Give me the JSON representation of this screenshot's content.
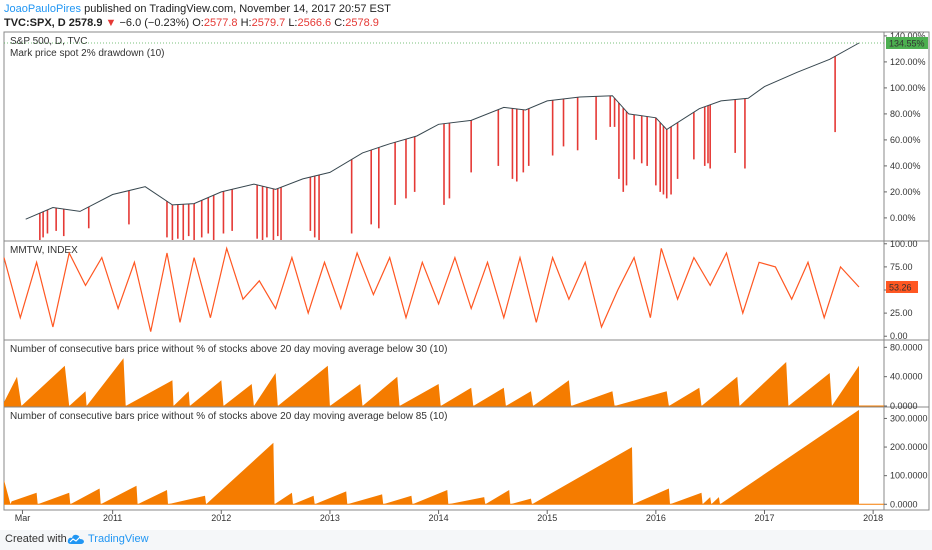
{
  "header": {
    "author": "JoaoPauloPires",
    "published": " published on TradingView.com, November 14, 2017 20:57 EST",
    "symbol": "TVC:SPX, D",
    "last": "2578.9",
    "change": "−6.0 (−0.23%)",
    "o_label": "O:",
    "o_value": "2577.8",
    "h_label": "H:",
    "h_value": "2579.7",
    "l_label": "L:",
    "l_value": "2566.6",
    "c_label": "C:",
    "c_value": "2578.9"
  },
  "footer": {
    "created_with": "Created with",
    "brand": "TradingView",
    "logo_icon": "tradingview-cloud-icon"
  },
  "colors": {
    "accent": "#2196f3",
    "down": "#e53935",
    "orange": "#ff5722",
    "histogram": "#f57c00",
    "bar_red": "#e53935",
    "badge_green": "#4caf50"
  },
  "chart_data": [
    {
      "type": "line",
      "title": "S&P 500, D, TVC",
      "subtitle": "Mark price spot 2% drawdown (10)",
      "last_value_label": "134.55%",
      "y_ticks": [
        "140.00%",
        "120.00%",
        "100.00%",
        "80.00%",
        "60.00%",
        "40.00%",
        "20.00%",
        "0.00%"
      ],
      "y_tick_values": [
        140,
        120,
        100,
        80,
        60,
        40,
        20,
        0
      ],
      "ylim": [
        -17,
        143
      ],
      "x": [
        2010.2,
        2010.45,
        2010.7,
        2011.0,
        2011.3,
        2011.55,
        2011.75,
        2012.0,
        2012.3,
        2012.5,
        2012.75,
        2013.0,
        2013.3,
        2013.55,
        2013.8,
        2014.0,
        2014.3,
        2014.6,
        2014.8,
        2015.0,
        2015.3,
        2015.6,
        2015.75,
        2016.0,
        2016.1,
        2016.4,
        2016.6,
        2016.85,
        2017.0,
        2017.3,
        2017.6,
        2017.87
      ],
      "values": [
        -1,
        8,
        5,
        18,
        24,
        10,
        11,
        20,
        26,
        22,
        30,
        35,
        50,
        57,
        63,
        72,
        75,
        85,
        83,
        90,
        93,
        94,
        80,
        77,
        68,
        84,
        90,
        92,
        101,
        112,
        122,
        134.55
      ],
      "drawdown_bars": [
        {
          "x": 2010.33,
          "low": -17
        },
        {
          "x": 2010.36,
          "low": -15
        },
        {
          "x": 2010.4,
          "low": -12
        },
        {
          "x": 2010.48,
          "low": -10
        },
        {
          "x": 2010.55,
          "low": -14
        },
        {
          "x": 2010.78,
          "low": -8
        },
        {
          "x": 2011.15,
          "low": -5
        },
        {
          "x": 2011.5,
          "low": -15
        },
        {
          "x": 2011.55,
          "low": -17
        },
        {
          "x": 2011.6,
          "low": -16
        },
        {
          "x": 2011.65,
          "low": -17
        },
        {
          "x": 2011.7,
          "low": -14
        },
        {
          "x": 2011.75,
          "low": -17
        },
        {
          "x": 2011.82,
          "low": -15
        },
        {
          "x": 2011.88,
          "low": -12
        },
        {
          "x": 2011.93,
          "low": -17
        },
        {
          "x": 2012.02,
          "low": -12
        },
        {
          "x": 2012.1,
          "low": -10
        },
        {
          "x": 2012.33,
          "low": -16
        },
        {
          "x": 2012.38,
          "low": -17
        },
        {
          "x": 2012.42,
          "low": -15
        },
        {
          "x": 2012.48,
          "low": -17
        },
        {
          "x": 2012.52,
          "low": -14
        },
        {
          "x": 2012.55,
          "low": -17
        },
        {
          "x": 2012.82,
          "low": -10
        },
        {
          "x": 2012.86,
          "low": -15
        },
        {
          "x": 2012.9,
          "low": -17
        },
        {
          "x": 2013.2,
          "low": -12
        },
        {
          "x": 2013.38,
          "low": -5
        },
        {
          "x": 2013.45,
          "low": -8
        },
        {
          "x": 2013.6,
          "low": 10
        },
        {
          "x": 2013.7,
          "low": 15
        },
        {
          "x": 2013.78,
          "low": 20
        },
        {
          "x": 2014.05,
          "low": 10
        },
        {
          "x": 2014.1,
          "low": 15
        },
        {
          "x": 2014.3,
          "low": 35
        },
        {
          "x": 2014.55,
          "low": 40
        },
        {
          "x": 2014.68,
          "low": 30
        },
        {
          "x": 2014.72,
          "low": 28
        },
        {
          "x": 2014.78,
          "low": 35
        },
        {
          "x": 2014.83,
          "low": 40
        },
        {
          "x": 2015.05,
          "low": 48
        },
        {
          "x": 2015.15,
          "low": 55
        },
        {
          "x": 2015.28,
          "low": 52
        },
        {
          "x": 2015.45,
          "low": 60
        },
        {
          "x": 2015.58,
          "low": 70
        },
        {
          "x": 2015.62,
          "low": 70
        },
        {
          "x": 2015.66,
          "low": 30
        },
        {
          "x": 2015.7,
          "low": 20
        },
        {
          "x": 2015.73,
          "low": 25
        },
        {
          "x": 2015.8,
          "low": 45
        },
        {
          "x": 2015.87,
          "low": 42
        },
        {
          "x": 2015.92,
          "low": 40
        },
        {
          "x": 2016.0,
          "low": 25
        },
        {
          "x": 2016.04,
          "low": 20
        },
        {
          "x": 2016.07,
          "low": 18
        },
        {
          "x": 2016.1,
          "low": 15
        },
        {
          "x": 2016.14,
          "low": 18
        },
        {
          "x": 2016.2,
          "low": 30
        },
        {
          "x": 2016.35,
          "low": 45
        },
        {
          "x": 2016.45,
          "low": 40
        },
        {
          "x": 2016.48,
          "low": 42
        },
        {
          "x": 2016.5,
          "low": 38
        },
        {
          "x": 2016.73,
          "low": 50
        },
        {
          "x": 2016.82,
          "low": 38
        },
        {
          "x": 2017.65,
          "low": 66
        }
      ]
    },
    {
      "type": "line",
      "title": "MMTW, INDEX",
      "last_value_label": "53.26",
      "y_ticks": [
        "100.00",
        "75.00",
        "50.00",
        "25.00",
        "0.00"
      ],
      "y_tick_values": [
        100,
        75,
        50,
        25,
        0
      ],
      "ylim": [
        -3,
        103
      ],
      "x": [
        2010.0,
        2010.15,
        2010.3,
        2010.45,
        2010.6,
        2010.75,
        2010.9,
        2011.05,
        2011.2,
        2011.35,
        2011.5,
        2011.62,
        2011.75,
        2011.9,
        2012.05,
        2012.2,
        2012.35,
        2012.5,
        2012.65,
        2012.8,
        2012.95,
        2013.1,
        2013.25,
        2013.4,
        2013.55,
        2013.7,
        2013.85,
        2014.0,
        2014.15,
        2014.3,
        2014.45,
        2014.6,
        2014.75,
        2014.9,
        2015.05,
        2015.2,
        2015.35,
        2015.5,
        2015.65,
        2015.8,
        2015.95,
        2016.05,
        2016.2,
        2016.35,
        2016.5,
        2016.65,
        2016.8,
        2016.95,
        2017.1,
        2017.25,
        2017.4,
        2017.55,
        2017.7,
        2017.87
      ],
      "values": [
        85,
        20,
        80,
        10,
        90,
        55,
        85,
        30,
        80,
        5,
        90,
        15,
        85,
        20,
        95,
        40,
        60,
        30,
        85,
        25,
        80,
        30,
        90,
        45,
        85,
        20,
        80,
        35,
        85,
        30,
        80,
        20,
        85,
        15,
        85,
        40,
        80,
        10,
        50,
        85,
        20,
        95,
        40,
        85,
        55,
        90,
        25,
        80,
        75,
        40,
        80,
        20,
        75,
        53.26
      ]
    },
    {
      "type": "area",
      "title": "Number of consecutive bars price without % of stocks above 20 day moving average below 30 (10)",
      "y_ticks": [
        "80.0000",
        "40.0000",
        "0.0000"
      ],
      "y_tick_values": [
        80,
        40,
        0
      ],
      "ylim": [
        0,
        90
      ],
      "x": [
        2010.0,
        2010.12,
        2010.16,
        2010.56,
        2010.6,
        2010.75,
        2010.76,
        2011.1,
        2011.12,
        2011.55,
        2011.56,
        2011.7,
        2011.71,
        2012.0,
        2012.02,
        2012.28,
        2012.3,
        2012.5,
        2012.52,
        2012.98,
        2013.0,
        2013.28,
        2013.3,
        2013.62,
        2013.64,
        2014.0,
        2014.02,
        2014.3,
        2014.32,
        2014.6,
        2014.62,
        2014.85,
        2014.87,
        2015.2,
        2015.22,
        2015.6,
        2015.62,
        2016.1,
        2016.12,
        2016.4,
        2016.42,
        2016.75,
        2016.77,
        2017.2,
        2017.22,
        2017.6,
        2017.62,
        2017.87
      ],
      "values": [
        5,
        40,
        0,
        55,
        0,
        20,
        0,
        65,
        0,
        35,
        0,
        20,
        0,
        35,
        0,
        30,
        0,
        45,
        0,
        55,
        0,
        30,
        0,
        40,
        0,
        30,
        0,
        25,
        0,
        25,
        0,
        20,
        0,
        35,
        0,
        20,
        0,
        20,
        0,
        25,
        0,
        40,
        0,
        60,
        0,
        45,
        0,
        55
      ]
    },
    {
      "type": "area",
      "title": "Number of consecutive bars price without % of stocks above 20 day moving average below 85 (10)",
      "y_ticks": [
        "300.0000",
        "200.0000",
        "100.0000",
        "0.0000"
      ],
      "y_tick_values": [
        300,
        200,
        100,
        0
      ],
      "ylim": [
        -20,
        340
      ],
      "x_ticks": [
        "Mar",
        "2011",
        "2012",
        "2013",
        "2014",
        "2015",
        "2016",
        "2017",
        "2018"
      ],
      "x_tick_values": [
        2010.17,
        2011.0,
        2012.0,
        2013.0,
        2014.0,
        2015.0,
        2016.0,
        2017.0,
        2018.0
      ],
      "x": [
        2010.0,
        2010.06,
        2010.07,
        2010.3,
        2010.31,
        2010.6,
        2010.61,
        2010.88,
        2010.89,
        2011.22,
        2011.23,
        2011.5,
        2011.51,
        2011.85,
        2011.86,
        2012.48,
        2012.49,
        2012.65,
        2012.66,
        2012.85,
        2012.86,
        2013.15,
        2013.16,
        2013.48,
        2013.49,
        2013.75,
        2013.76,
        2014.08,
        2014.09,
        2014.42,
        2014.43,
        2014.65,
        2014.66,
        2014.85,
        2014.86,
        2015.78,
        2015.79,
        2016.12,
        2016.13,
        2016.42,
        2016.43,
        2016.5,
        2016.51,
        2016.58,
        2016.59,
        2017.87
      ],
      "values": [
        85,
        0,
        10,
        40,
        0,
        40,
        0,
        55,
        0,
        65,
        0,
        50,
        0,
        30,
        0,
        215,
        0,
        40,
        0,
        30,
        0,
        45,
        0,
        35,
        0,
        30,
        0,
        50,
        0,
        25,
        0,
        50,
        0,
        20,
        0,
        200,
        0,
        55,
        0,
        40,
        0,
        25,
        0,
        25,
        0,
        330
      ]
    }
  ]
}
